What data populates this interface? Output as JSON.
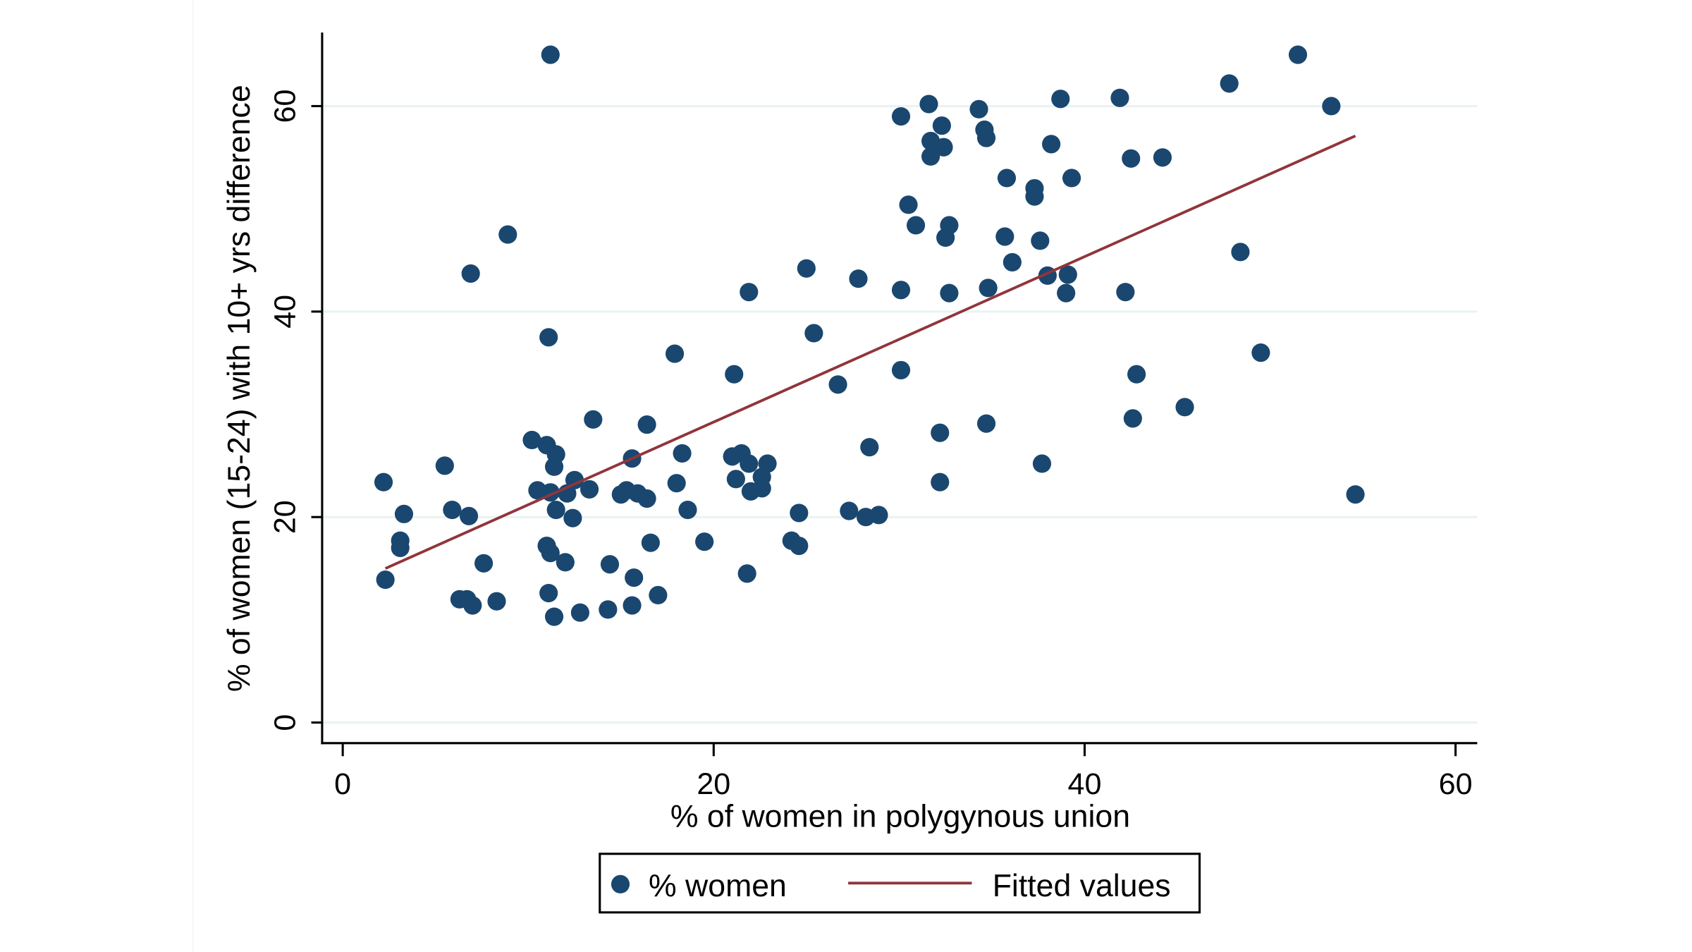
{
  "chart_data": {
    "type": "scatter",
    "xlabel": "% of women in polygynous union",
    "ylabel": "% of women (15-24) with 10+ yrs difference",
    "xlim": [
      0,
      60
    ],
    "ylim": [
      0,
      65
    ],
    "xticks": [
      "0",
      "20",
      "40",
      "60"
    ],
    "yticks": [
      "0",
      "20",
      "40",
      "60"
    ],
    "grid": "horizontal",
    "legend_position": "bottom",
    "colors": {
      "points": "#1a476f",
      "fit": "#90353b",
      "grid": "#eaf2f3"
    },
    "series": [
      {
        "name": "% women",
        "type": "scatter",
        "points": [
          [
            11.2,
            65.0
          ],
          [
            51.5,
            65.0
          ],
          [
            47.8,
            62.2
          ],
          [
            53.3,
            60.0
          ],
          [
            38.7,
            60.7
          ],
          [
            41.9,
            60.8
          ],
          [
            31.6,
            60.2
          ],
          [
            30.1,
            59.0
          ],
          [
            34.3,
            59.7
          ],
          [
            32.3,
            58.1
          ],
          [
            34.6,
            57.7
          ],
          [
            34.7,
            56.9
          ],
          [
            31.7,
            56.6
          ],
          [
            32.4,
            56.0
          ],
          [
            31.7,
            55.1
          ],
          [
            38.2,
            56.3
          ],
          [
            42.5,
            54.9
          ],
          [
            44.2,
            55.0
          ],
          [
            35.8,
            53.0
          ],
          [
            39.3,
            53.0
          ],
          [
            37.3,
            52.0
          ],
          [
            37.3,
            51.2
          ],
          [
            30.5,
            50.4
          ],
          [
            30.9,
            48.4
          ],
          [
            32.7,
            48.4
          ],
          [
            32.5,
            47.2
          ],
          [
            35.7,
            47.3
          ],
          [
            37.6,
            46.9
          ],
          [
            48.4,
            45.8
          ],
          [
            36.1,
            44.8
          ],
          [
            8.9,
            47.5
          ],
          [
            6.9,
            43.7
          ],
          [
            25.0,
            44.2
          ],
          [
            27.8,
            43.2
          ],
          [
            38.0,
            43.5
          ],
          [
            39.1,
            43.6
          ],
          [
            21.9,
            41.9
          ],
          [
            30.1,
            42.1
          ],
          [
            32.7,
            41.8
          ],
          [
            34.8,
            42.3
          ],
          [
            39.0,
            41.8
          ],
          [
            42.2,
            41.9
          ],
          [
            25.4,
            37.9
          ],
          [
            11.1,
            37.5
          ],
          [
            17.9,
            35.9
          ],
          [
            49.5,
            36.0
          ],
          [
            21.1,
            33.9
          ],
          [
            30.1,
            34.3
          ],
          [
            42.8,
            33.9
          ],
          [
            26.7,
            32.9
          ],
          [
            45.4,
            30.7
          ],
          [
            13.5,
            29.5
          ],
          [
            16.4,
            29.0
          ],
          [
            34.7,
            29.1
          ],
          [
            42.6,
            29.6
          ],
          [
            32.2,
            28.2
          ],
          [
            28.4,
            26.8
          ],
          [
            10.2,
            27.5
          ],
          [
            11.0,
            27.0
          ],
          [
            11.5,
            26.1
          ],
          [
            18.3,
            26.2
          ],
          [
            15.6,
            25.7
          ],
          [
            21.0,
            25.9
          ],
          [
            21.5,
            26.2
          ],
          [
            21.9,
            25.2
          ],
          [
            22.9,
            25.2
          ],
          [
            5.5,
            25.0
          ],
          [
            11.4,
            24.9
          ],
          [
            37.7,
            25.2
          ],
          [
            2.2,
            23.4
          ],
          [
            12.5,
            23.6
          ],
          [
            18.0,
            23.3
          ],
          [
            21.2,
            23.7
          ],
          [
            22.6,
            23.9
          ],
          [
            32.2,
            23.4
          ],
          [
            13.3,
            22.7
          ],
          [
            10.5,
            22.6
          ],
          [
            11.2,
            22.4
          ],
          [
            12.1,
            22.3
          ],
          [
            15.3,
            22.6
          ],
          [
            15.0,
            22.2
          ],
          [
            15.9,
            22.3
          ],
          [
            16.4,
            21.8
          ],
          [
            22.0,
            22.5
          ],
          [
            22.6,
            22.8
          ],
          [
            54.6,
            22.2
          ],
          [
            3.3,
            20.3
          ],
          [
            5.9,
            20.7
          ],
          [
            6.8,
            20.1
          ],
          [
            11.5,
            20.7
          ],
          [
            12.4,
            19.9
          ],
          [
            18.6,
            20.7
          ],
          [
            24.6,
            20.4
          ],
          [
            27.3,
            20.6
          ],
          [
            28.2,
            20.0
          ],
          [
            28.9,
            20.2
          ],
          [
            3.1,
            17.7
          ],
          [
            3.1,
            17.0
          ],
          [
            11.0,
            17.2
          ],
          [
            16.6,
            17.5
          ],
          [
            19.5,
            17.6
          ],
          [
            24.2,
            17.7
          ],
          [
            24.6,
            17.2
          ],
          [
            11.2,
            16.5
          ],
          [
            7.6,
            15.5
          ],
          [
            12.0,
            15.6
          ],
          [
            14.4,
            15.4
          ],
          [
            15.7,
            14.1
          ],
          [
            21.8,
            14.5
          ],
          [
            2.3,
            13.9
          ],
          [
            11.1,
            12.6
          ],
          [
            6.3,
            12.0
          ],
          [
            6.7,
            12.0
          ],
          [
            7.0,
            11.4
          ],
          [
            8.3,
            11.8
          ],
          [
            17.0,
            12.4
          ],
          [
            15.6,
            11.4
          ],
          [
            14.3,
            11.0
          ],
          [
            12.8,
            10.7
          ],
          [
            11.4,
            10.3
          ]
        ]
      },
      {
        "name": "Fitted values",
        "type": "line",
        "points": [
          [
            2.3,
            15.0
          ],
          [
            54.6,
            57.1
          ]
        ]
      }
    ]
  }
}
